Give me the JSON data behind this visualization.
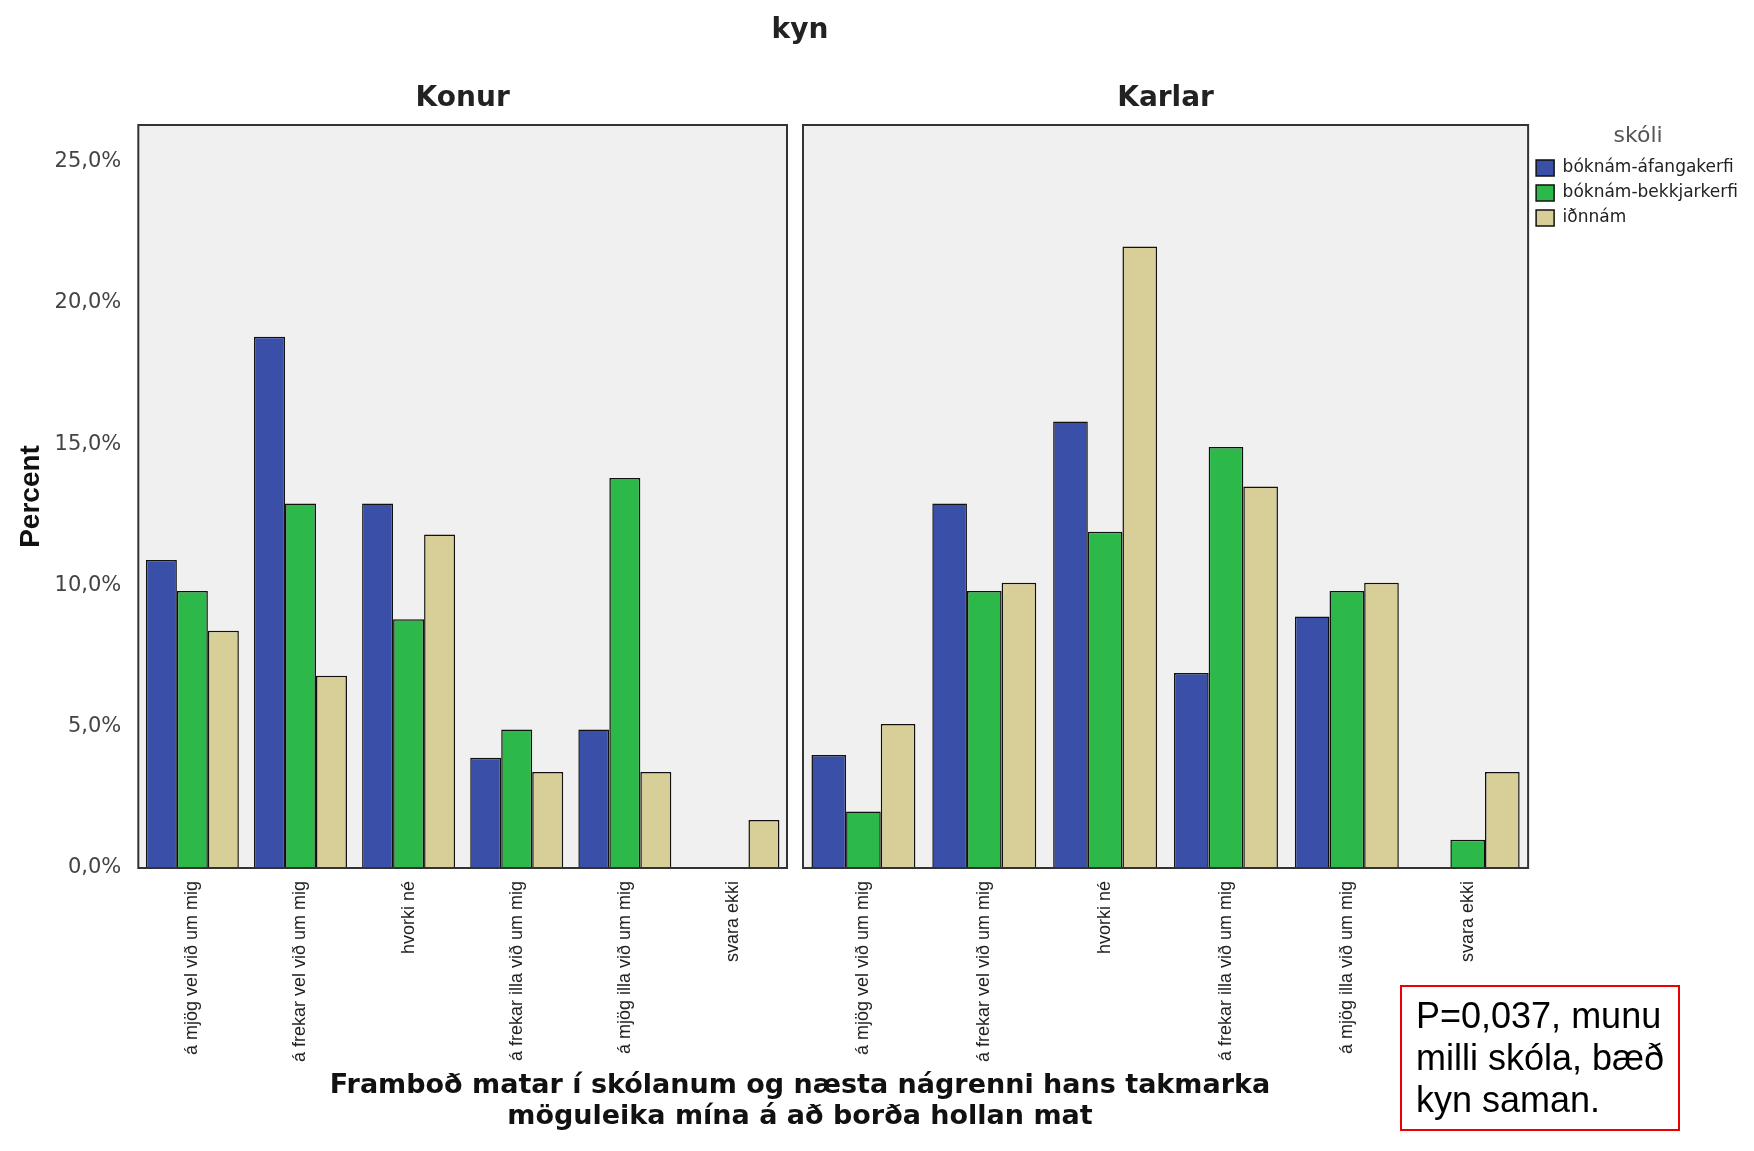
{
  "chart_data": [
    {
      "type": "bar",
      "title": "Konur",
      "ylabel": "Percent",
      "xlabel": "Framboð matar í skólanum og næsta nágrenni hans takmarka möguleika mína á að borða hollan mat",
      "annotations": [
        "kyn"
      ],
      "categories": [
        "á mjög vel við um mig",
        "á frekar vel við um mig",
        "hvorki né",
        "á frekar illa við um mig",
        "á mjög illa við um mig",
        "svara ekki"
      ],
      "series": [
        {
          "color": "#3a4fa8",
          "values": [
            10.9,
            18.8,
            12.9,
            3.9,
            4.9,
            0
          ]
        },
        {
          "color": "#2db84a",
          "values": [
            9.8,
            12.9,
            8.8,
            4.9,
            13.8,
            0
          ]
        },
        {
          "color": "#d8cf98",
          "values": [
            8.4,
            6.8,
            11.8,
            3.4,
            3.4,
            1.7
          ]
        }
      ],
      "ylim": [
        0,
        26.3
      ],
      "yticks": [
        {
          "value": 0,
          "label": "0,0%"
        },
        {
          "value": 5,
          "label": "5,0%"
        },
        {
          "value": 10,
          "label": "10,0%"
        },
        {
          "value": 15,
          "label": "15,0%"
        },
        {
          "value": 20,
          "label": "20,0%"
        },
        {
          "value": 25,
          "label": "25,0%"
        }
      ]
    },
    {
      "type": "bar",
      "title": "Karlar",
      "legend_title": "skóli",
      "legend": "right",
      "tick_labels": "x",
      "annotations": [
        "P=0,037, munu\nmilli skóla, bæð\nkyn saman."
      ],
      "categories": [
        "á mjög vel við um mig",
        "á frekar vel við um mig",
        "hvorki né",
        "á frekar illa við um mig",
        "á mjög illa við um mig",
        "svara ekki"
      ],
      "series": [
        {
          "name": "bóknám-áfangakerfi",
          "color": "#3a4fa8",
          "values": [
            4.0,
            12.9,
            15.8,
            6.9,
            8.9,
            0
          ]
        },
        {
          "name": "bóknám-bekkjarkerfi",
          "color": "#2db84a",
          "values": [
            2.0,
            9.8,
            11.9,
            14.9,
            9.8,
            1.0
          ]
        },
        {
          "name": "iðnnám",
          "color": "#d8cf98",
          "values": [
            5.1,
            10.1,
            22.0,
            13.5,
            10.1,
            3.4
          ]
        }
      ],
      "ylim": [
        0,
        26.3
      ]
    }
  ]
}
